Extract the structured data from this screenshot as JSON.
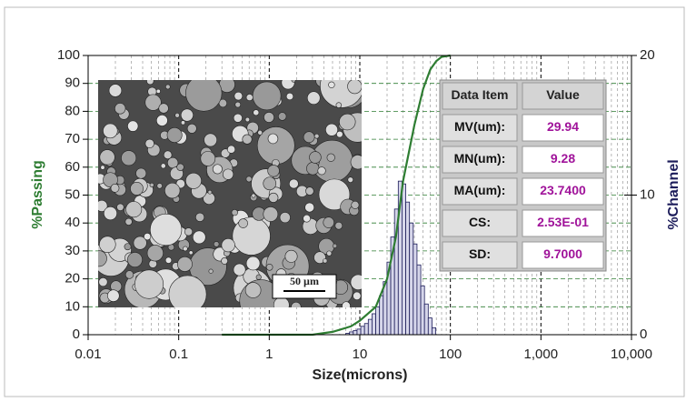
{
  "chart_data": {
    "type": "histogram",
    "x_label": "Size(microns)",
    "y_label": "%Passing",
    "y2_label": "%Channel",
    "xscale": "log",
    "xlim": [
      0.01,
      10000
    ],
    "xticks": [
      0.01,
      0.1,
      1,
      10,
      100,
      {
        "value": 1000,
        "label": "1,000"
      },
      {
        "value": 10000,
        "label": "10,000"
      }
    ],
    "ylim": [
      0,
      100
    ],
    "yticks": [
      0,
      10,
      20,
      30,
      40,
      50,
      60,
      70,
      80,
      90,
      100
    ],
    "y2lim": [
      0,
      20
    ],
    "y2ticks": [
      0,
      10,
      20
    ],
    "grid": true,
    "bins": [
      7.0,
      7.7,
      8.47,
      9.32,
      10.25,
      11.27,
      12.4,
      13.64,
      15.0,
      16.5,
      18.15,
      19.97,
      21.96,
      24.16,
      26.58,
      29.23,
      32.16,
      35.37,
      38.91,
      42.8,
      47.08,
      51.79,
      56.97,
      62.67,
      68.93
    ],
    "values": [
      0.1,
      0.2,
      0.3,
      0.4,
      0.6,
      0.8,
      1.1,
      1.5,
      2.0,
      2.8,
      3.8,
      5.2,
      7.0,
      9.0,
      11.0,
      10.8,
      9.5,
      8.0,
      6.5,
      5.0,
      3.5,
      2.2,
      1.2,
      0.5
    ],
    "axis": "y2",
    "color": "#1c1c5a",
    "line": {
      "x": [
        0.3,
        1,
        3,
        5,
        8,
        10,
        15,
        20,
        25,
        30,
        40,
        50,
        60,
        70,
        80,
        100
      ],
      "values": [
        0,
        0,
        0,
        1,
        3,
        5,
        10,
        20,
        35,
        55,
        75,
        88,
        95,
        98,
        99.5,
        100
      ],
      "color": "#2e7d32"
    },
    "inset_label": "50 µm",
    "table": {
      "columns": [
        "Data Item",
        "Value"
      ],
      "rows": [
        [
          "MV(um):",
          "29.94"
        ],
        [
          "MN(um):",
          "9.28"
        ],
        [
          "MA(um):",
          "23.7400"
        ],
        [
          "CS:",
          "2.53E-01"
        ],
        [
          "SD:",
          "9.7000"
        ]
      ]
    }
  }
}
